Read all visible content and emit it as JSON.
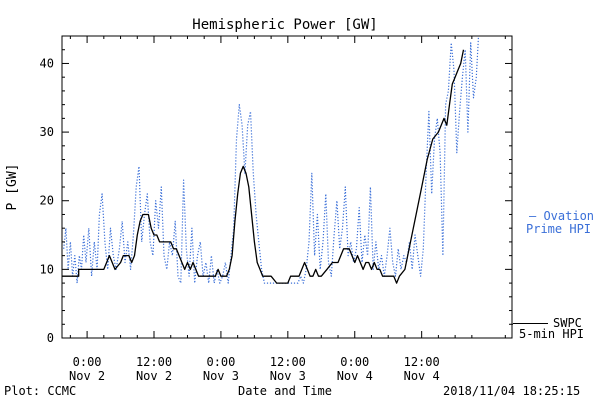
{
  "chart_data": {
    "type": "line",
    "title": "Hemispheric Power [GW]",
    "ylabel": "P [GW]",
    "xlabel": "Date and Time",
    "ylim": [
      0,
      44
    ],
    "yticks": [
      0,
      10,
      20,
      30,
      40
    ],
    "xlim": [
      -4.5,
      76.2
    ],
    "x_unit": "hours since 2018-11-02 00:00 UTC",
    "x_tick_values": [
      0,
      12,
      24,
      36,
      48,
      60
    ],
    "x_tick_labels": [
      {
        "time": "0:00",
        "date": "Nov 2"
      },
      {
        "time": "12:00",
        "date": "Nov 2"
      },
      {
        "time": "0:00",
        "date": "Nov 3"
      },
      {
        "time": "12:00",
        "date": "Nov 3"
      },
      {
        "time": "0:00",
        "date": "Nov 4"
      },
      {
        "time": "12:00",
        "date": "Nov 4"
      }
    ],
    "grid": false,
    "legend": [
      {
        "line1": "— Ovation",
        "line2": "Prime HPI",
        "color": "#3a6fd8",
        "style": "dotted",
        "level": 18
      },
      {
        "line1": "SWPC",
        "line2": "5-min HPI",
        "color": "#000000",
        "style": "solid",
        "level": 2
      }
    ],
    "series": [
      {
        "name": "Ovation Prime HPI",
        "color": "#3a6fd8",
        "style": "dotted",
        "points": [
          [
            -4.2,
            13
          ],
          [
            -3.8,
            16
          ],
          [
            -3.4,
            10
          ],
          [
            -3,
            14
          ],
          [
            -2.6,
            9
          ],
          [
            -2.2,
            12
          ],
          [
            -1.8,
            8
          ],
          [
            -1.4,
            12
          ],
          [
            -1,
            10
          ],
          [
            -0.6,
            15
          ],
          [
            -0.2,
            11
          ],
          [
            0.3,
            16
          ],
          [
            0.8,
            9
          ],
          [
            1.3,
            14
          ],
          [
            1.8,
            10
          ],
          [
            2.2,
            18
          ],
          [
            2.7,
            21
          ],
          [
            3.2,
            14
          ],
          [
            3.7,
            10
          ],
          [
            4.2,
            16
          ],
          [
            4.7,
            12
          ],
          [
            5.2,
            10
          ],
          [
            5.8,
            13
          ],
          [
            6.3,
            17
          ],
          [
            6.8,
            11
          ],
          [
            7.3,
            14
          ],
          [
            7.8,
            10
          ],
          [
            8.3,
            15
          ],
          [
            8.8,
            22
          ],
          [
            9.3,
            25
          ],
          [
            9.8,
            14
          ],
          [
            10.3,
            18
          ],
          [
            10.8,
            21
          ],
          [
            11.3,
            14
          ],
          [
            11.8,
            12
          ],
          [
            12.3,
            20
          ],
          [
            12.8,
            16
          ],
          [
            13.3,
            22
          ],
          [
            13.8,
            12
          ],
          [
            14.3,
            10
          ],
          [
            14.8,
            14
          ],
          [
            15.3,
            12
          ],
          [
            15.8,
            17
          ],
          [
            16.3,
            9
          ],
          [
            16.8,
            8
          ],
          [
            17.3,
            23
          ],
          [
            17.8,
            13
          ],
          [
            18.3,
            9
          ],
          [
            18.8,
            16
          ],
          [
            19.3,
            8
          ],
          [
            19.8,
            12
          ],
          [
            20.3,
            14
          ],
          [
            20.8,
            9
          ],
          [
            21.3,
            11
          ],
          [
            21.8,
            8
          ],
          [
            22.3,
            12
          ],
          [
            22.8,
            8
          ],
          [
            23.3,
            10
          ],
          [
            23.8,
            8
          ],
          [
            24.3,
            9
          ],
          [
            24.8,
            11
          ],
          [
            25.3,
            8
          ],
          [
            25.8,
            12
          ],
          [
            26.3,
            16
          ],
          [
            26.8,
            29
          ],
          [
            27.3,
            34
          ],
          [
            27.8,
            31
          ],
          [
            28.3,
            24
          ],
          [
            28.8,
            31
          ],
          [
            29.3,
            33
          ],
          [
            29.8,
            24
          ],
          [
            30.3,
            18
          ],
          [
            30.8,
            14
          ],
          [
            31.3,
            10
          ],
          [
            31.8,
            8
          ],
          [
            32.3,
            8
          ],
          [
            32.8,
            8
          ],
          [
            33.3,
            8
          ],
          [
            33.8,
            8
          ],
          [
            34.3,
            8
          ],
          [
            34.8,
            8
          ],
          [
            35.3,
            8
          ],
          [
            35.8,
            8
          ],
          [
            36.3,
            8
          ],
          [
            36.8,
            8
          ],
          [
            37.3,
            8
          ],
          [
            37.8,
            8
          ],
          [
            38.3,
            9
          ],
          [
            38.8,
            8
          ],
          [
            39.3,
            10
          ],
          [
            39.8,
            14
          ],
          [
            40.3,
            24
          ],
          [
            40.8,
            12
          ],
          [
            41.3,
            18
          ],
          [
            41.8,
            10
          ],
          [
            42.3,
            14
          ],
          [
            42.8,
            21
          ],
          [
            43.3,
            11
          ],
          [
            43.8,
            9
          ],
          [
            44.3,
            15
          ],
          [
            44.8,
            20
          ],
          [
            45.3,
            13
          ],
          [
            45.8,
            16
          ],
          [
            46.3,
            22
          ],
          [
            46.8,
            12
          ],
          [
            47.3,
            14
          ],
          [
            47.8,
            11
          ],
          [
            48.3,
            13
          ],
          [
            48.8,
            19
          ],
          [
            49.3,
            11
          ],
          [
            49.8,
            15
          ],
          [
            50.3,
            12
          ],
          [
            50.8,
            22
          ],
          [
            51.3,
            10
          ],
          [
            51.8,
            14
          ],
          [
            52.3,
            10
          ],
          [
            52.8,
            12
          ],
          [
            53.3,
            9
          ],
          [
            53.8,
            12
          ],
          [
            54.3,
            16
          ],
          [
            54.8,
            11
          ],
          [
            55.3,
            9
          ],
          [
            55.8,
            13
          ],
          [
            56.3,
            10
          ],
          [
            56.8,
            12
          ],
          [
            57.3,
            11
          ],
          [
            57.8,
            14
          ],
          [
            58.3,
            10
          ],
          [
            58.8,
            15
          ],
          [
            59.3,
            12
          ],
          [
            59.8,
            9
          ],
          [
            60.3,
            13
          ],
          [
            60.8,
            24
          ],
          [
            61.3,
            33
          ],
          [
            61.8,
            21
          ],
          [
            62.3,
            29
          ],
          [
            62.8,
            32
          ],
          [
            63.3,
            27
          ],
          [
            63.8,
            12
          ],
          [
            64.3,
            34
          ],
          [
            64.8,
            36
          ],
          [
            65.3,
            43
          ],
          [
            65.8,
            39
          ],
          [
            66.3,
            27
          ],
          [
            66.8,
            33
          ],
          [
            67.3,
            38
          ],
          [
            67.8,
            42
          ],
          [
            68.3,
            30
          ],
          [
            68.8,
            43
          ],
          [
            69.3,
            35
          ],
          [
            69.8,
            38
          ],
          [
            70.2,
            44
          ]
        ]
      },
      {
        "name": "SWPC 5-min HPI",
        "color": "#000000",
        "style": "solid",
        "points": [
          [
            -4.5,
            9
          ],
          [
            -1.5,
            9
          ],
          [
            -1.5,
            10
          ],
          [
            3,
            10
          ],
          [
            3.5,
            11
          ],
          [
            4,
            12
          ],
          [
            4.5,
            11
          ],
          [
            5,
            10
          ],
          [
            6,
            11
          ],
          [
            6.5,
            12
          ],
          [
            7.5,
            12
          ],
          [
            8,
            11
          ],
          [
            8.5,
            12
          ],
          [
            9,
            15
          ],
          [
            9.5,
            17
          ],
          [
            10,
            18
          ],
          [
            11,
            18
          ],
          [
            11.5,
            16
          ],
          [
            12,
            15
          ],
          [
            12.5,
            15
          ],
          [
            13,
            14
          ],
          [
            15,
            14
          ],
          [
            15.5,
            13
          ],
          [
            16,
            13
          ],
          [
            16.5,
            12
          ],
          [
            17,
            11
          ],
          [
            17.5,
            10
          ],
          [
            18,
            11
          ],
          [
            18.5,
            10
          ],
          [
            19,
            11
          ],
          [
            19.5,
            10
          ],
          [
            20,
            9
          ],
          [
            21,
            9
          ],
          [
            23,
            9
          ],
          [
            23.5,
            10
          ],
          [
            24,
            9
          ],
          [
            25,
            9
          ],
          [
            25.5,
            10
          ],
          [
            26,
            12
          ],
          [
            26.5,
            17
          ],
          [
            27,
            21
          ],
          [
            27.5,
            24
          ],
          [
            28,
            25
          ],
          [
            28.5,
            24
          ],
          [
            29,
            22
          ],
          [
            29.5,
            18
          ],
          [
            30,
            14
          ],
          [
            30.5,
            11
          ],
          [
            31,
            10
          ],
          [
            31.5,
            9
          ],
          [
            32.5,
            9
          ],
          [
            33,
            9
          ],
          [
            34,
            8
          ],
          [
            35,
            8
          ],
          [
            36,
            8
          ],
          [
            36.5,
            9
          ],
          [
            38,
            9
          ],
          [
            38.5,
            10
          ],
          [
            39,
            11
          ],
          [
            39.5,
            10
          ],
          [
            40,
            9
          ],
          [
            40.5,
            9
          ],
          [
            41,
            10
          ],
          [
            41.5,
            9
          ],
          [
            42,
            9
          ],
          [
            43,
            10
          ],
          [
            44,
            11
          ],
          [
            45,
            11
          ],
          [
            45.5,
            12
          ],
          [
            46,
            13
          ],
          [
            47,
            13
          ],
          [
            47.5,
            12
          ],
          [
            48,
            11
          ],
          [
            48.5,
            12
          ],
          [
            49,
            11
          ],
          [
            49.5,
            10
          ],
          [
            50,
            11
          ],
          [
            50.5,
            11
          ],
          [
            51,
            10
          ],
          [
            51.5,
            11
          ],
          [
            52,
            10
          ],
          [
            52.5,
            10
          ],
          [
            53,
            9
          ],
          [
            55,
            9
          ],
          [
            55.5,
            8
          ],
          [
            56,
            9
          ],
          [
            57,
            10
          ],
          [
            58,
            14
          ],
          [
            59,
            18
          ],
          [
            60,
            22
          ],
          [
            61,
            26
          ],
          [
            62,
            29
          ],
          [
            63,
            30
          ],
          [
            63.5,
            31
          ],
          [
            64,
            32
          ],
          [
            64.5,
            31
          ],
          [
            65,
            34
          ],
          [
            65.5,
            37
          ],
          [
            66,
            38
          ],
          [
            66.5,
            39
          ],
          [
            67,
            40
          ],
          [
            67.5,
            42
          ]
        ]
      }
    ]
  },
  "footer": {
    "plot_credit": "Plot: CCMC",
    "timestamp": "2018/11/04 18:25:15"
  }
}
